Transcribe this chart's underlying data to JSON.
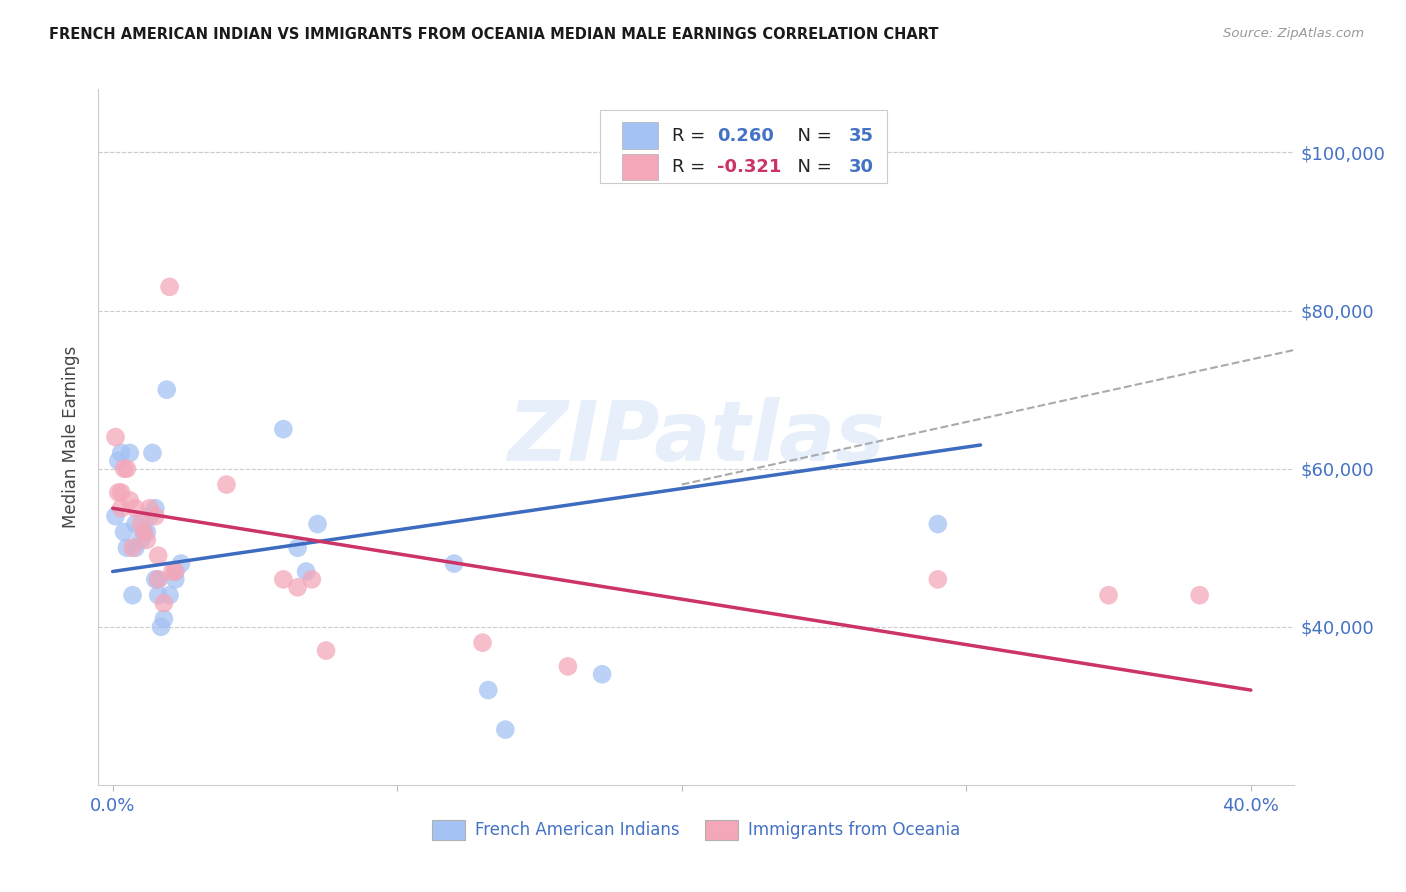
{
  "title": "FRENCH AMERICAN INDIAN VS IMMIGRANTS FROM OCEANIA MEDIAN MALE EARNINGS CORRELATION CHART",
  "source": "Source: ZipAtlas.com",
  "ylabel": "Median Male Earnings",
  "xlim": [
    -0.005,
    0.415
  ],
  "ylim": [
    20000,
    108000
  ],
  "yticks": [
    40000,
    60000,
    80000,
    100000
  ],
  "xticks": [
    0.0,
    0.1,
    0.2,
    0.3,
    0.4
  ],
  "xtick_labels": [
    "0.0%",
    "",
    "",
    "",
    "40.0%"
  ],
  "ytick_labels": [
    "$40,000",
    "$60,000",
    "$80,000",
    "$100,000"
  ],
  "blue_color": "#a4c2f4",
  "pink_color": "#f4a7b9",
  "blue_line_color": "#3d6bbf",
  "pink_line_color": "#cc3366",
  "blue_x": [
    0.001,
    0.002,
    0.003,
    0.004,
    0.005,
    0.006,
    0.007,
    0.008,
    0.008,
    0.01,
    0.011,
    0.012,
    0.013,
    0.014,
    0.015,
    0.015,
    0.016,
    0.016,
    0.017,
    0.018,
    0.019,
    0.02,
    0.022,
    0.022,
    0.024,
    0.06,
    0.065,
    0.068,
    0.072,
    0.12,
    0.132,
    0.138,
    0.172,
    0.29
  ],
  "blue_y": [
    54000,
    61000,
    62000,
    52000,
    50000,
    62000,
    44000,
    53000,
    50000,
    51000,
    52000,
    52000,
    54000,
    62000,
    55000,
    46000,
    44000,
    46000,
    40000,
    41000,
    70000,
    44000,
    47000,
    46000,
    48000,
    65000,
    50000,
    47000,
    53000,
    48000,
    32000,
    27000,
    34000,
    53000
  ],
  "pink_x": [
    0.001,
    0.002,
    0.003,
    0.003,
    0.004,
    0.005,
    0.006,
    0.007,
    0.008,
    0.01,
    0.011,
    0.012,
    0.013,
    0.015,
    0.016,
    0.016,
    0.018,
    0.02,
    0.021,
    0.022,
    0.04,
    0.06,
    0.065,
    0.07,
    0.075,
    0.13,
    0.16,
    0.29,
    0.35,
    0.382
  ],
  "pink_y": [
    64000,
    57000,
    55000,
    57000,
    60000,
    60000,
    56000,
    50000,
    55000,
    53000,
    52000,
    51000,
    55000,
    54000,
    46000,
    49000,
    43000,
    83000,
    47000,
    47000,
    58000,
    46000,
    45000,
    46000,
    37000,
    38000,
    35000,
    46000,
    44000,
    44000
  ],
  "blue_trend_x": [
    0.0,
    0.305
  ],
  "blue_trend_y": [
    47000,
    63000
  ],
  "pink_trend_x": [
    0.0,
    0.4
  ],
  "pink_trend_y": [
    55000,
    32000
  ],
  "dashed_trend_x": [
    0.2,
    0.415
  ],
  "dashed_trend_y": [
    58000,
    75000
  ],
  "legend_label1": "French American Indians",
  "legend_label2": "Immigrants from Oceania",
  "watermark": "ZIPatlas",
  "bg_color": "#ffffff",
  "grid_color": "#cccccc",
  "axis_label_color": "#4472c4",
  "text_color": "#1a1a1a",
  "legend_text_color": "#1a1a1a",
  "legend_num_color": "#4472c4",
  "legend_R2_color": "#cc3366"
}
